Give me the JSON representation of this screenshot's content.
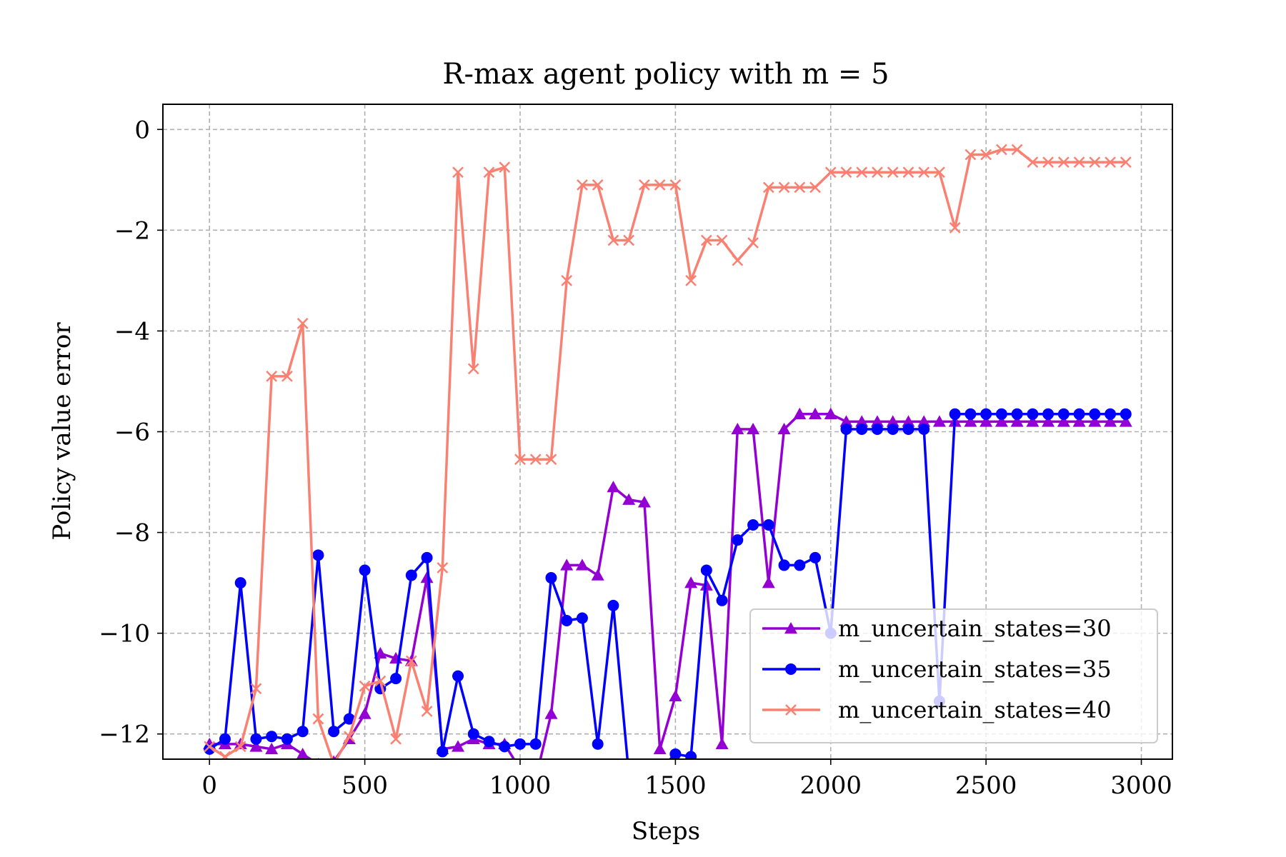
{
  "chart_data": {
    "type": "line",
    "title": "R-max agent policy with m = 5",
    "xlabel": "Steps",
    "ylabel": "Policy value error",
    "xlim": [
      -150,
      3100
    ],
    "ylim": [
      -12.5,
      0.5
    ],
    "xticks": [
      0,
      500,
      1000,
      1500,
      2000,
      2500,
      3000
    ],
    "xtick_labels": [
      "0",
      "500",
      "1000",
      "1500",
      "2000",
      "2500",
      "3000"
    ],
    "yticks": [
      0,
      -2,
      -4,
      -6,
      -8,
      -10,
      -12
    ],
    "ytick_labels": [
      "0",
      "−2",
      "−4",
      "−6",
      "−8",
      "−10",
      "−12"
    ],
    "grid": true,
    "legend_position": "lower-right",
    "x": [
      0,
      50,
      100,
      150,
      200,
      250,
      300,
      350,
      400,
      450,
      500,
      550,
      600,
      650,
      700,
      750,
      800,
      850,
      900,
      950,
      1000,
      1050,
      1100,
      1150,
      1200,
      1250,
      1300,
      1350,
      1400,
      1450,
      1500,
      1550,
      1600,
      1650,
      1700,
      1750,
      1800,
      1850,
      1900,
      1950,
      2000,
      2050,
      2100,
      2150,
      2200,
      2250,
      2300,
      2350,
      2400,
      2450,
      2500,
      2550,
      2600,
      2650,
      2700,
      2750,
      2800,
      2850,
      2900,
      2950
    ],
    "series": [
      {
        "name": "m_uncertain_states=30",
        "color": "#9400d3",
        "marker": "triangle",
        "values": [
          -12.2,
          -12.2,
          -12.2,
          -12.25,
          -12.3,
          -12.2,
          -12.4,
          -12.6,
          -12.55,
          -12.1,
          -11.6,
          -10.4,
          -10.5,
          -10.55,
          -8.9,
          -12.3,
          -12.25,
          -12.1,
          -12.2,
          -12.2,
          -12.7,
          -12.9,
          -11.6,
          -8.65,
          -8.65,
          -8.85,
          -7.1,
          -7.35,
          -7.4,
          -12.3,
          -11.25,
          -9.0,
          -9.05,
          -12.2,
          -5.95,
          -5.95,
          -9.0,
          -5.95,
          -5.65,
          -5.65,
          -5.65,
          -5.8,
          -5.8,
          -5.8,
          -5.8,
          -5.8,
          -5.8,
          -5.8,
          -5.8,
          -5.8,
          -5.8,
          -5.8,
          -5.8,
          -5.8,
          -5.8,
          -5.8,
          -5.8,
          -5.8,
          -5.8,
          -5.8
        ]
      },
      {
        "name": "m_uncertain_states=35",
        "color": "#0000ff",
        "marker": "circle",
        "values": [
          -12.3,
          -12.1,
          -9.0,
          -12.1,
          -12.05,
          -12.1,
          -11.95,
          -8.45,
          -11.95,
          -11.7,
          -8.75,
          -11.1,
          -10.9,
          -8.85,
          -8.5,
          -12.35,
          -10.85,
          -12.0,
          -12.15,
          -12.25,
          -12.2,
          -12.2,
          -8.9,
          -9.75,
          -9.7,
          -12.2,
          -9.45,
          -12.8,
          -12.6,
          -12.7,
          -12.4,
          -12.45,
          -8.75,
          -9.35,
          -8.15,
          -7.85,
          -7.85,
          -8.65,
          -8.65,
          -8.5,
          -10.0,
          -5.95,
          -5.95,
          -5.95,
          -5.95,
          -5.95,
          -5.95,
          -11.35,
          -5.65,
          -5.65,
          -5.65,
          -5.65,
          -5.65,
          -5.65,
          -5.65,
          -5.65,
          -5.65,
          -5.65,
          -5.65,
          -5.65
        ]
      },
      {
        "name": "m_uncertain_states=40",
        "color": "#fa8072",
        "marker": "x",
        "values": [
          -12.25,
          -12.45,
          -12.25,
          -11.1,
          -4.9,
          -4.9,
          -3.85,
          -11.7,
          -12.6,
          -12.05,
          -11.05,
          -10.95,
          -12.1,
          -10.55,
          -11.55,
          -8.7,
          -0.85,
          -4.75,
          -0.85,
          -0.75,
          -6.55,
          -6.55,
          -6.55,
          -3.0,
          -1.1,
          -1.1,
          -2.2,
          -2.2,
          -1.1,
          -1.1,
          -1.1,
          -3.0,
          -2.2,
          -2.2,
          -2.6,
          -2.25,
          -1.15,
          -1.15,
          -1.15,
          -1.15,
          -0.85,
          -0.85,
          -0.85,
          -0.85,
          -0.85,
          -0.85,
          -0.85,
          -0.85,
          -1.95,
          -0.5,
          -0.5,
          -0.4,
          -0.4,
          -0.65,
          -0.65,
          -0.65,
          -0.65,
          -0.65,
          -0.65,
          -0.65
        ]
      }
    ]
  }
}
